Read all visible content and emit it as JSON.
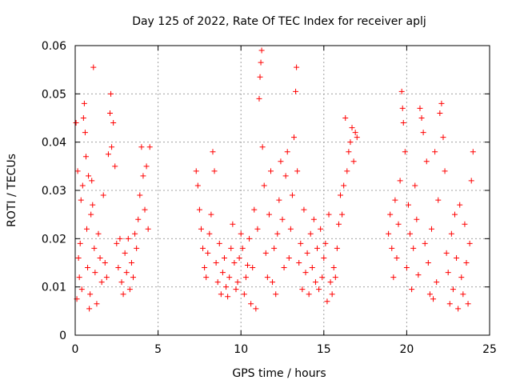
{
  "chart_data": {
    "type": "scatter",
    "title": "Day 125 of 2022, Rate Of TEC Index for receiver aplj",
    "xlabel": "GPS time / hours",
    "ylabel": "ROTI / TECUs",
    "xlim": [
      0,
      25
    ],
    "ylim": [
      0,
      0.06
    ],
    "xticks": [
      "0",
      "5",
      "10",
      "15",
      "20",
      "25"
    ],
    "yticks": [
      "0",
      "0.01",
      "0.02",
      "0.03",
      "0.04",
      "0.05",
      "0.06"
    ],
    "grid": true,
    "marker": "+",
    "color": "#ff0000",
    "series": [
      {
        "points": [
          [
            0.05,
            0.044
          ],
          [
            0.1,
            0.0075
          ],
          [
            0.15,
            0.034
          ],
          [
            0.2,
            0.016
          ],
          [
            0.25,
            0.012
          ],
          [
            0.3,
            0.019
          ],
          [
            0.35,
            0.028
          ],
          [
            0.4,
            0.0095
          ],
          [
            0.45,
            0.031
          ],
          [
            0.5,
            0.045
          ],
          [
            0.55,
            0.048
          ],
          [
            0.6,
            0.042
          ],
          [
            0.65,
            0.037
          ],
          [
            0.7,
            0.022
          ],
          [
            0.75,
            0.014
          ],
          [
            0.8,
            0.033
          ],
          [
            0.85,
            0.0055
          ],
          [
            0.9,
            0.0085
          ],
          [
            0.95,
            0.025
          ],
          [
            1.0,
            0.032
          ],
          [
            1.05,
            0.027
          ],
          [
            1.1,
            0.0555
          ],
          [
            1.15,
            0.018
          ],
          [
            1.2,
            0.013
          ],
          [
            1.3,
            0.0065
          ],
          [
            1.4,
            0.021
          ],
          [
            1.5,
            0.016
          ],
          [
            1.6,
            0.011
          ],
          [
            1.7,
            0.029
          ],
          [
            1.8,
            0.015
          ],
          [
            1.9,
            0.012
          ],
          [
            2.0,
            0.0375
          ],
          [
            2.1,
            0.046
          ],
          [
            2.15,
            0.05
          ],
          [
            2.2,
            0.039
          ],
          [
            2.3,
            0.044
          ],
          [
            2.4,
            0.035
          ],
          [
            2.5,
            0.019
          ],
          [
            2.6,
            0.014
          ],
          [
            2.7,
            0.02
          ],
          [
            2.8,
            0.011
          ],
          [
            2.9,
            0.0085
          ],
          [
            3.0,
            0.017
          ],
          [
            3.1,
            0.013
          ],
          [
            3.2,
            0.02
          ],
          [
            3.3,
            0.0095
          ],
          [
            3.4,
            0.015
          ],
          [
            3.5,
            0.012
          ],
          [
            3.6,
            0.021
          ],
          [
            3.7,
            0.018
          ],
          [
            3.8,
            0.024
          ],
          [
            3.9,
            0.029
          ],
          [
            4.0,
            0.039
          ],
          [
            4.1,
            0.033
          ],
          [
            4.2,
            0.026
          ],
          [
            4.3,
            0.035
          ],
          [
            4.4,
            0.022
          ],
          [
            4.5,
            0.039
          ],
          [
            7.3,
            0.034
          ],
          [
            7.4,
            0.031
          ],
          [
            7.5,
            0.026
          ],
          [
            7.6,
            0.022
          ],
          [
            7.7,
            0.018
          ],
          [
            7.8,
            0.014
          ],
          [
            7.9,
            0.012
          ],
          [
            8.0,
            0.017
          ],
          [
            8.1,
            0.021
          ],
          [
            8.2,
            0.025
          ],
          [
            8.3,
            0.038
          ],
          [
            8.4,
            0.034
          ],
          [
            8.5,
            0.015
          ],
          [
            8.6,
            0.011
          ],
          [
            8.7,
            0.019
          ],
          [
            8.8,
            0.0085
          ],
          [
            8.9,
            0.013
          ],
          [
            9.0,
            0.016
          ],
          [
            9.1,
            0.01
          ],
          [
            9.2,
            0.008
          ],
          [
            9.3,
            0.012
          ],
          [
            9.4,
            0.018
          ],
          [
            9.5,
            0.023
          ],
          [
            9.6,
            0.015
          ],
          [
            9.7,
            0.0095
          ],
          [
            9.8,
            0.011
          ],
          [
            9.9,
            0.016
          ],
          [
            10.0,
            0.021
          ],
          [
            10.1,
            0.018
          ],
          [
            10.2,
            0.0085
          ],
          [
            10.3,
            0.012
          ],
          [
            10.4,
            0.0145
          ],
          [
            10.5,
            0.02
          ],
          [
            10.6,
            0.0065
          ],
          [
            10.7,
            0.014
          ],
          [
            10.8,
            0.026
          ],
          [
            10.9,
            0.0055
          ],
          [
            11.0,
            0.022
          ],
          [
            11.1,
            0.049
          ],
          [
            11.15,
            0.0535
          ],
          [
            11.2,
            0.0565
          ],
          [
            11.25,
            0.059
          ],
          [
            11.3,
            0.039
          ],
          [
            11.4,
            0.031
          ],
          [
            11.5,
            0.017
          ],
          [
            11.6,
            0.012
          ],
          [
            11.7,
            0.025
          ],
          [
            11.8,
            0.034
          ],
          [
            11.9,
            0.011
          ],
          [
            12.0,
            0.018
          ],
          [
            12.1,
            0.0085
          ],
          [
            12.2,
            0.021
          ],
          [
            12.3,
            0.028
          ],
          [
            12.4,
            0.036
          ],
          [
            12.5,
            0.024
          ],
          [
            12.6,
            0.014
          ],
          [
            12.7,
            0.033
          ],
          [
            12.8,
            0.038
          ],
          [
            12.9,
            0.016
          ],
          [
            13.0,
            0.022
          ],
          [
            13.1,
            0.029
          ],
          [
            13.2,
            0.041
          ],
          [
            13.3,
            0.0505
          ],
          [
            13.35,
            0.0555
          ],
          [
            13.4,
            0.034
          ],
          [
            13.5,
            0.015
          ],
          [
            13.6,
            0.019
          ],
          [
            13.7,
            0.0095
          ],
          [
            13.8,
            0.026
          ],
          [
            13.9,
            0.013
          ],
          [
            14.0,
            0.017
          ],
          [
            14.1,
            0.0085
          ],
          [
            14.2,
            0.021
          ],
          [
            14.3,
            0.014
          ],
          [
            14.4,
            0.024
          ],
          [
            14.5,
            0.011
          ],
          [
            14.6,
            0.018
          ],
          [
            14.7,
            0.0095
          ],
          [
            14.8,
            0.022
          ],
          [
            14.9,
            0.012
          ],
          [
            15.0,
            0.016
          ],
          [
            15.1,
            0.019
          ],
          [
            15.2,
            0.007
          ],
          [
            15.3,
            0.025
          ],
          [
            15.4,
            0.011
          ],
          [
            15.5,
            0.0085
          ],
          [
            15.6,
            0.014
          ],
          [
            15.7,
            0.012
          ],
          [
            15.8,
            0.018
          ],
          [
            15.9,
            0.023
          ],
          [
            16.0,
            0.029
          ],
          [
            16.1,
            0.025
          ],
          [
            16.2,
            0.031
          ],
          [
            16.3,
            0.045
          ],
          [
            16.4,
            0.034
          ],
          [
            16.5,
            0.038
          ],
          [
            16.6,
            0.04
          ],
          [
            16.7,
            0.043
          ],
          [
            16.8,
            0.036
          ],
          [
            16.9,
            0.042
          ],
          [
            17.0,
            0.041
          ],
          [
            18.9,
            0.021
          ],
          [
            19.0,
            0.025
          ],
          [
            19.1,
            0.018
          ],
          [
            19.2,
            0.012
          ],
          [
            19.3,
            0.028
          ],
          [
            19.4,
            0.016
          ],
          [
            19.5,
            0.023
          ],
          [
            19.6,
            0.032
          ],
          [
            19.7,
            0.0505
          ],
          [
            19.75,
            0.047
          ],
          [
            19.8,
            0.044
          ],
          [
            19.9,
            0.038
          ],
          [
            20.0,
            0.014
          ],
          [
            20.1,
            0.027
          ],
          [
            20.2,
            0.021
          ],
          [
            20.3,
            0.0095
          ],
          [
            20.4,
            0.018
          ],
          [
            20.5,
            0.031
          ],
          [
            20.6,
            0.024
          ],
          [
            20.7,
            0.0125
          ],
          [
            20.8,
            0.047
          ],
          [
            20.9,
            0.045
          ],
          [
            21.0,
            0.042
          ],
          [
            21.1,
            0.019
          ],
          [
            21.2,
            0.036
          ],
          [
            21.3,
            0.015
          ],
          [
            21.4,
            0.0085
          ],
          [
            21.5,
            0.022
          ],
          [
            21.6,
            0.0075
          ],
          [
            21.7,
            0.038
          ],
          [
            21.8,
            0.011
          ],
          [
            21.9,
            0.028
          ],
          [
            22.0,
            0.046
          ],
          [
            22.1,
            0.048
          ],
          [
            22.2,
            0.041
          ],
          [
            22.3,
            0.034
          ],
          [
            22.4,
            0.017
          ],
          [
            22.5,
            0.013
          ],
          [
            22.6,
            0.0065
          ],
          [
            22.7,
            0.021
          ],
          [
            22.8,
            0.0095
          ],
          [
            22.9,
            0.025
          ],
          [
            23.0,
            0.016
          ],
          [
            23.1,
            0.0055
          ],
          [
            23.2,
            0.027
          ],
          [
            23.3,
            0.012
          ],
          [
            23.4,
            0.0085
          ],
          [
            23.5,
            0.023
          ],
          [
            23.6,
            0.015
          ],
          [
            23.7,
            0.0065
          ],
          [
            23.8,
            0.019
          ],
          [
            23.9,
            0.032
          ],
          [
            24.0,
            0.038
          ]
        ]
      }
    ]
  }
}
